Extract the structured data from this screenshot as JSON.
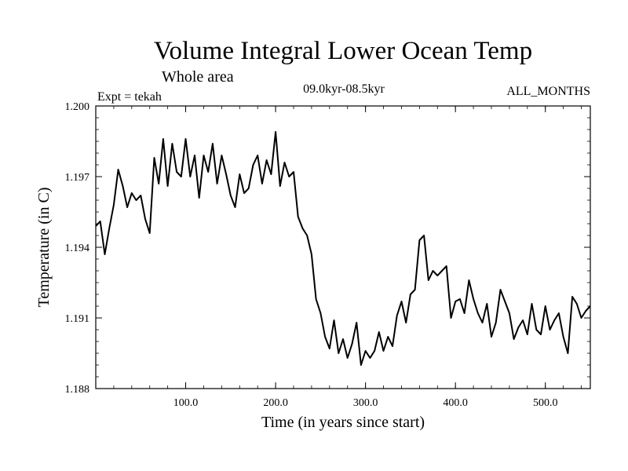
{
  "chart_data": {
    "type": "line",
    "title": "Volume Integral Lower Ocean Temp",
    "subtitle": "Whole area",
    "experiment_label": "Expt = tekah",
    "period_label": "09.0kyr-08.5kyr",
    "months_label": "ALL_MONTHS",
    "xlabel": "Time (in years since start)",
    "ylabel": "Temperature (in C)",
    "xlim": [
      0,
      550
    ],
    "ylim": [
      1.188,
      1.2
    ],
    "xticks": [
      100,
      200,
      300,
      400,
      500
    ],
    "xtick_labels": [
      "100.0",
      "200.0",
      "300.0",
      "400.0",
      "500.0"
    ],
    "yticks": [
      1.188,
      1.191,
      1.194,
      1.197,
      1.2
    ],
    "ytick_labels": [
      "1.188",
      "1.191",
      "1.194",
      "1.197",
      "1.200"
    ],
    "series": [
      {
        "name": "tekah",
        "color": "#000000",
        "x": [
          0,
          5,
          10,
          15,
          20,
          25,
          30,
          35,
          40,
          45,
          50,
          55,
          60,
          65,
          70,
          75,
          80,
          85,
          90,
          95,
          100,
          105,
          110,
          115,
          120,
          125,
          130,
          135,
          140,
          145,
          150,
          155,
          160,
          165,
          170,
          175,
          180,
          185,
          190,
          195,
          200,
          205,
          210,
          215,
          220,
          225,
          230,
          235,
          240,
          245,
          250,
          255,
          260,
          265,
          270,
          275,
          280,
          285,
          290,
          295,
          300,
          305,
          310,
          315,
          320,
          325,
          330,
          335,
          340,
          345,
          350,
          355,
          360,
          365,
          370,
          375,
          380,
          385,
          390,
          395,
          400,
          405,
          410,
          415,
          420,
          425,
          430,
          435,
          440,
          445,
          450,
          455,
          460,
          465,
          470,
          475,
          480,
          485,
          490,
          495,
          500,
          505,
          510,
          515,
          520,
          525,
          530,
          535,
          540,
          545,
          550
        ],
        "y": [
          1.1949,
          1.1951,
          1.1937,
          1.1948,
          1.1958,
          1.1973,
          1.1966,
          1.1957,
          1.1963,
          1.196,
          1.1962,
          1.1952,
          1.1946,
          1.1978,
          1.1967,
          1.1986,
          1.1966,
          1.1984,
          1.1972,
          1.197,
          1.1986,
          1.197,
          1.1979,
          1.1961,
          1.1979,
          1.1972,
          1.1984,
          1.1967,
          1.1979,
          1.1971,
          1.1962,
          1.1957,
          1.1971,
          1.1963,
          1.1965,
          1.1975,
          1.1979,
          1.1967,
          1.1977,
          1.1971,
          1.1989,
          1.1966,
          1.1976,
          1.197,
          1.1972,
          1.1953,
          1.1948,
          1.1945,
          1.1937,
          1.1918,
          1.1912,
          1.1902,
          1.1897,
          1.1909,
          1.1895,
          1.1901,
          1.1893,
          1.1899,
          1.1908,
          1.189,
          1.1896,
          1.1893,
          1.1896,
          1.1904,
          1.1896,
          1.1902,
          1.1898,
          1.1911,
          1.1917,
          1.1908,
          1.192,
          1.1922,
          1.1943,
          1.1945,
          1.1926,
          1.193,
          1.1928,
          1.193,
          1.1932,
          1.191,
          1.1917,
          1.1918,
          1.1912,
          1.1926,
          1.1918,
          1.1912,
          1.1908,
          1.1916,
          1.1902,
          1.1908,
          1.1922,
          1.1917,
          1.1912,
          1.1901,
          1.1906,
          1.1909,
          1.1903,
          1.1916,
          1.1905,
          1.1903,
          1.1915,
          1.1905,
          1.1909,
          1.1912,
          1.1902,
          1.1895,
          1.1919,
          1.1916,
          1.191,
          1.1913,
          1.1915
        ]
      }
    ]
  }
}
